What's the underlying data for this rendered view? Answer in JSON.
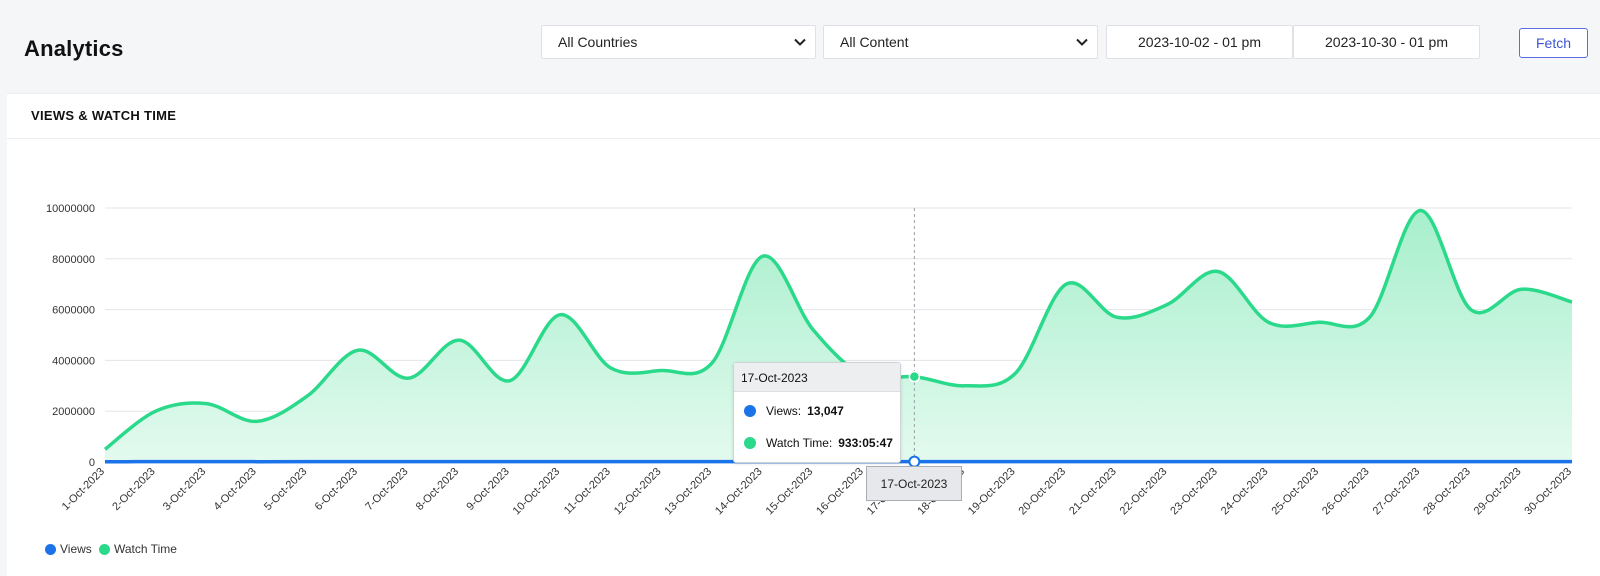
{
  "header": {
    "title": "Analytics",
    "country_select": "All Countries",
    "content_select": "All Content",
    "date_from": "2023-10-02 - 01 pm",
    "date_to": "2023-10-30 - 01 pm",
    "fetch_label": "Fetch"
  },
  "card": {
    "title": "VIEWS & WATCH TIME"
  },
  "tooltip": {
    "date": "17-Oct-2023",
    "views_label": "Views:",
    "views_value": "13,047",
    "watch_label": "Watch Time:",
    "watch_value": "933:05:47",
    "axis_label": "17-Oct-2023"
  },
  "legend": {
    "views": "Views",
    "watch_time": "Watch Time"
  },
  "colors": {
    "views": "#1a73e8",
    "watch_time": "#2bd98b",
    "watch_fill": "#c9f4df",
    "accent": "#3d55d8"
  },
  "chart_data": {
    "type": "area",
    "categories": [
      "1-Oct-2023",
      "2-Oct-2023",
      "3-Oct-2023",
      "4-Oct-2023",
      "5-Oct-2023",
      "6-Oct-2023",
      "7-Oct-2023",
      "8-Oct-2023",
      "9-Oct-2023",
      "10-Oct-2023",
      "11-Oct-2023",
      "12-Oct-2023",
      "13-Oct-2023",
      "14-Oct-2023",
      "15-Oct-2023",
      "16-Oct-2023",
      "17-Oct-2023",
      "18-Oct-2023",
      "19-Oct-2023",
      "20-Oct-2023",
      "21-Oct-2023",
      "22-Oct-2023",
      "23-Oct-2023",
      "24-Oct-2023",
      "25-Oct-2023",
      "26-Oct-2023",
      "27-Oct-2023",
      "28-Oct-2023",
      "29-Oct-2023",
      "30-Oct-2023"
    ],
    "series": [
      {
        "name": "Views",
        "values": [
          12000,
          12500,
          12600,
          12300,
          12800,
          13200,
          12900,
          13300,
          12800,
          13500,
          13100,
          13000,
          13100,
          13600,
          13400,
          12900,
          13047,
          12800,
          12900,
          13800,
          13300,
          13400,
          13600,
          13200,
          13200,
          13300,
          14000,
          13200,
          13400,
          13300
        ]
      },
      {
        "name": "Watch Time",
        "values": [
          500000,
          2000000,
          2300000,
          1600000,
          2600000,
          4400000,
          3300000,
          4800000,
          3200000,
          5800000,
          3700000,
          3600000,
          3900000,
          8100000,
          5200000,
          3400000,
          3360000,
          3000000,
          3500000,
          7000000,
          5700000,
          6200000,
          7500000,
          5500000,
          5500000,
          5700000,
          9900000,
          6000000,
          6800000,
          6300000
        ]
      }
    ],
    "yticks": [
      "0",
      "2000000",
      "4000000",
      "6000000",
      "8000000",
      "10000000"
    ],
    "ylim": [
      0,
      10000000
    ],
    "grid": true,
    "legend_position": "bottom-left",
    "highlighted_category": "17-Oct-2023"
  }
}
